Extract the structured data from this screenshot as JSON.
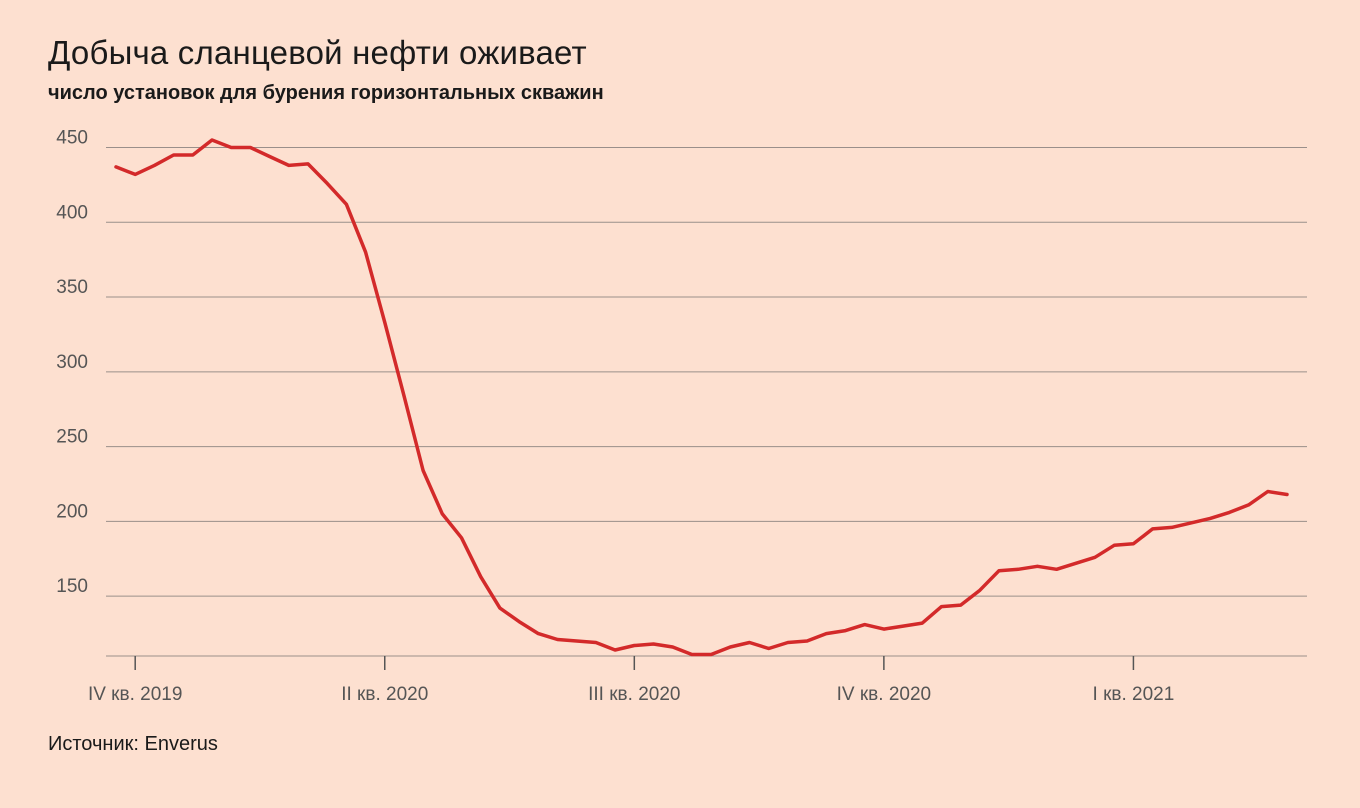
{
  "title": "Добыча сланцевой нефти оживает",
  "subtitle": "число установок для бурения горизонтальных скважин",
  "source": "Источник: Enverus",
  "colors": {
    "line": "#d32a2a",
    "background": "#fde0d0",
    "grid": "#9a8f8a"
  },
  "chart_data": {
    "type": "line",
    "title": "Добыча сланцевой нефти оживает",
    "subtitle": "число установок для бурения горизонтальных скважин",
    "ylim": [
      110,
      455
    ],
    "yticks": [
      150,
      200,
      250,
      300,
      350,
      400,
      450
    ],
    "x_tick_labels": [
      "IV кв. 2019",
      "II кв. 2020",
      "III кв. 2020",
      "IV кв. 2020",
      "I кв. 2021"
    ],
    "x_tick_index": [
      1,
      14,
      27,
      40,
      53
    ],
    "grid": true,
    "series": [
      {
        "values": [
          437,
          432,
          438,
          445,
          445,
          455,
          450,
          450,
          444,
          438,
          439,
          426,
          412,
          380,
          333,
          284,
          234,
          205,
          189,
          163,
          142,
          133,
          125,
          121,
          120,
          119,
          114,
          117,
          118,
          116,
          111,
          111,
          116,
          119,
          115,
          119,
          120,
          125,
          127,
          131,
          128,
          130,
          132,
          143,
          144,
          154,
          167,
          168,
          170,
          168,
          172,
          176,
          184,
          185,
          195,
          196,
          199,
          202,
          206,
          211,
          220,
          218
        ]
      }
    ]
  }
}
